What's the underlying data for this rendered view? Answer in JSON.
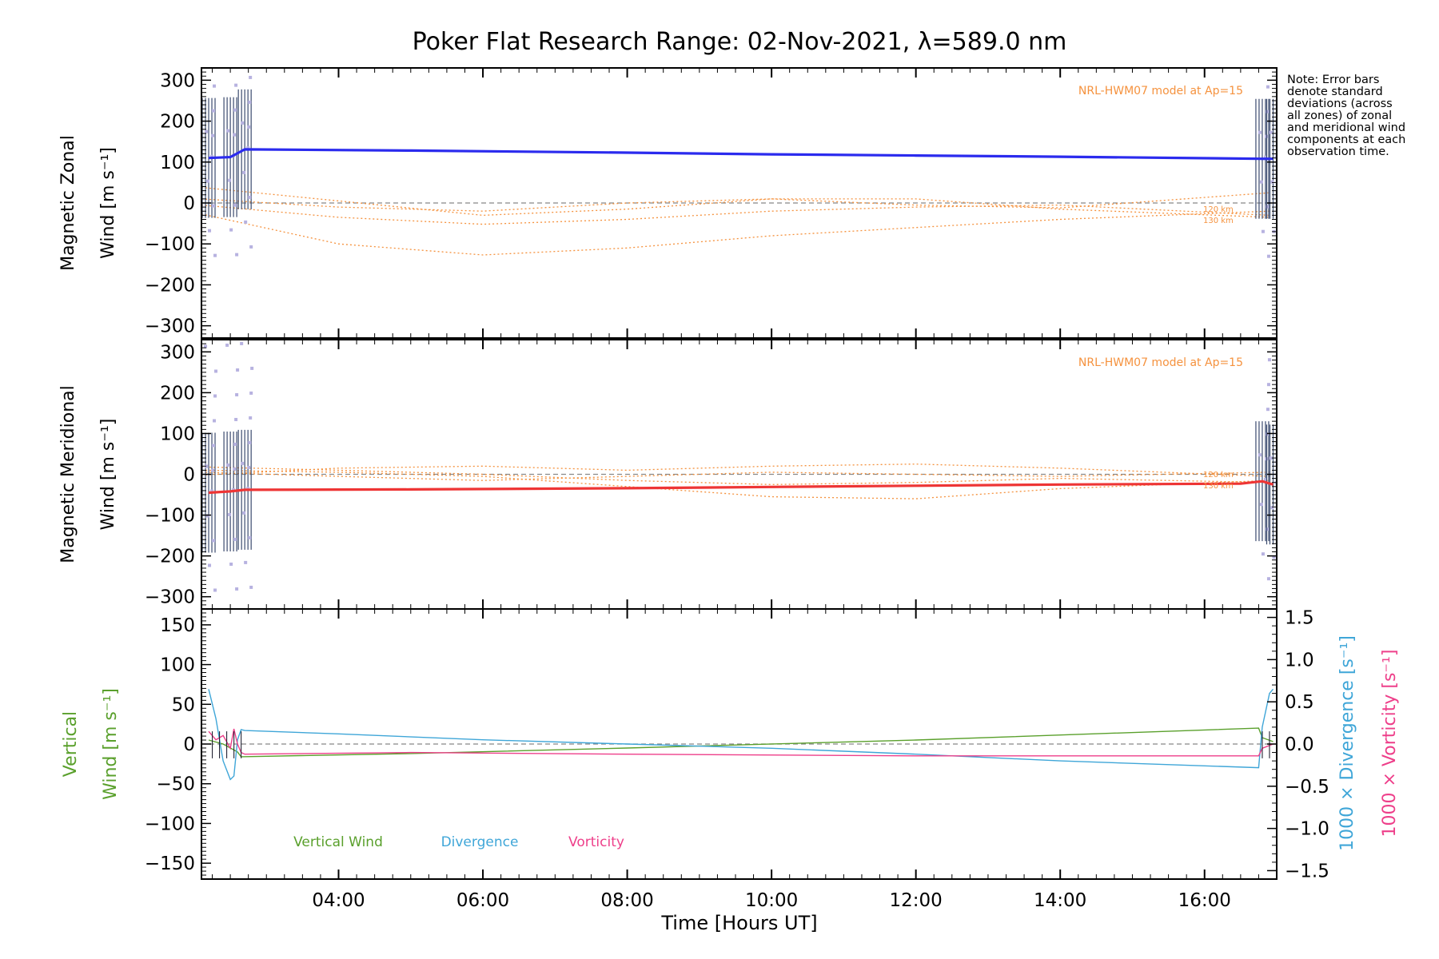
{
  "title": "Poker Flat Research Range: 02-Nov-2021, λ=589.0 nm",
  "note": "Note: Error bars denote standard deviations (across all zones) of zonal and meridional wind components at each observation time.",
  "x_axis": {
    "label": "Time [Hours UT]",
    "range_hours": [
      2.1,
      17.0
    ],
    "ticks": [
      {
        "value": 4,
        "label": "04:00"
      },
      {
        "value": 6,
        "label": "06:00"
      },
      {
        "value": 8,
        "label": "08:00"
      },
      {
        "value": 10,
        "label": "10:00"
      },
      {
        "value": 12,
        "label": "12:00"
      },
      {
        "value": 14,
        "label": "14:00"
      },
      {
        "value": 16,
        "label": "16:00"
      }
    ]
  },
  "colors": {
    "zonal": "#2b2bee",
    "meridional": "#ee3535",
    "model": "#f5923e",
    "vertical": "#5aa02c",
    "divergence": "#3fa6d8",
    "vorticity": "#ee3f8a",
    "scatter": "#b7b2e0",
    "zero_line": "#888888"
  },
  "chart_data": [
    {
      "type": "line",
      "panel": "zonal",
      "ylabel_line1": "Magnetic Zonal",
      "ylabel_line2": "Wind [m s⁻¹]",
      "ylim": [
        -330,
        330
      ],
      "yticks": [
        -300,
        -200,
        -100,
        0,
        100,
        200,
        300
      ],
      "model_label": "NRL-HWM07 model at Ap=15",
      "model_alt_labels": [
        "120 km",
        "130 km"
      ],
      "series": [
        {
          "role": "measured",
          "x": [
            2.2,
            2.5,
            2.7,
            5.0,
            8.0,
            10.0,
            12.0,
            14.0,
            16.8,
            16.95
          ],
          "y": [
            110,
            112,
            131,
            128,
            123,
            119,
            116,
            113,
            108,
            108
          ]
        },
        {
          "role": "model",
          "x": [
            2.1,
            4.0,
            6.0,
            8.0,
            10.0,
            12.0,
            14.0,
            16.9
          ],
          "y": [
            -27,
            -100,
            -127,
            -110,
            -80,
            -60,
            -40,
            -20
          ]
        },
        {
          "role": "model",
          "x": [
            2.1,
            4.0,
            6.0,
            8.0,
            10.0,
            12.0,
            14.0,
            16.9
          ],
          "y": [
            -5,
            -35,
            -52,
            -40,
            -20,
            -10,
            -5,
            -30
          ]
        },
        {
          "role": "model",
          "x": [
            2.1,
            4.0,
            6.0,
            8.0,
            10.0,
            12.0,
            14.0,
            16.9
          ],
          "y": [
            38,
            5,
            -30,
            -15,
            10,
            10,
            -15,
            -35
          ]
        },
        {
          "role": "model",
          "x": [
            2.1,
            4.0,
            6.0,
            8.0,
            10.0,
            12.0,
            14.0,
            16.9
          ],
          "y": [
            10,
            -10,
            -20,
            0,
            10,
            -5,
            -12,
            25
          ]
        }
      ]
    },
    {
      "type": "line",
      "panel": "meridional",
      "ylabel_line1": "Magnetic Meridional",
      "ylabel_line2": "Wind [m s⁻¹]",
      "ylim": [
        -330,
        330
      ],
      "yticks": [
        -300,
        -200,
        -100,
        0,
        100,
        200,
        300
      ],
      "model_label": "NRL-HWM07 model at Ap=15",
      "model_alt_labels": [
        "120 km",
        "130 km"
      ],
      "series": [
        {
          "role": "measured",
          "x": [
            2.2,
            2.5,
            2.7,
            5.0,
            8.0,
            10.0,
            12.0,
            14.0,
            16.5,
            16.8,
            16.95
          ],
          "y": [
            -45,
            -42,
            -38,
            -37,
            -34,
            -31,
            -28,
            -25,
            -23,
            -17,
            -25
          ]
        },
        {
          "role": "model",
          "x": [
            2.1,
            4.0,
            6.0,
            8.0,
            10.0,
            12.0,
            14.0,
            16.9
          ],
          "y": [
            10,
            5,
            -5,
            -30,
            -55,
            -60,
            -35,
            -15
          ]
        },
        {
          "role": "model",
          "x": [
            2.1,
            4.0,
            6.0,
            8.0,
            10.0,
            12.0,
            14.0,
            16.9
          ],
          "y": [
            -2,
            15,
            20,
            10,
            20,
            25,
            15,
            -5
          ]
        },
        {
          "role": "model",
          "x": [
            2.1,
            4.0,
            6.0,
            8.0,
            10.0,
            12.0,
            14.0,
            16.9
          ],
          "y": [
            5,
            -5,
            -15,
            -5,
            5,
            0,
            -5,
            5
          ]
        },
        {
          "role": "model",
          "x": [
            2.1,
            4.0,
            6.0,
            8.0,
            10.0,
            12.0,
            14.0,
            16.9
          ],
          "y": [
            18,
            10,
            0,
            -15,
            -25,
            -20,
            -10,
            -20
          ]
        }
      ]
    },
    {
      "type": "line",
      "panel": "vertical",
      "ylabel_line1": "Vertical",
      "ylabel_line2": "Wind [m s⁻¹]",
      "y2label_div": "1000 × Divergence [s⁻¹]",
      "y2label_vort": "1000 × Vorticity [s⁻¹]",
      "ylim": [
        -170,
        170
      ],
      "yticks": [
        -150,
        -100,
        -50,
        0,
        50,
        100,
        150
      ],
      "y2lim": [
        -1.6,
        1.6
      ],
      "y2ticks": [
        -1.5,
        -1.0,
        -0.5,
        0.0,
        0.5,
        1.0,
        1.5
      ],
      "y2ticklabels": [
        "−1.5",
        "−1.0",
        "−0.5",
        "0.0",
        "0.5",
        "1.0",
        "1.5"
      ],
      "legend": [
        "Vertical Wind",
        "Divergence",
        "Vorticity"
      ],
      "series": [
        {
          "name": "Vertical Wind",
          "axis": "left",
          "x": [
            2.2,
            2.4,
            2.6,
            2.65,
            5.0,
            8.0,
            12.0,
            16.75,
            16.8,
            16.95
          ],
          "y": [
            5,
            0,
            -10,
            -16,
            -12,
            -5,
            5,
            20,
            8,
            3
          ]
        },
        {
          "name": "Divergence",
          "axis": "right",
          "x": [
            2.2,
            2.3,
            2.4,
            2.5,
            2.55,
            2.6,
            2.65,
            2.7,
            4.0,
            6.0,
            8.0,
            10.0,
            12.0,
            14.0,
            16.75,
            16.8,
            16.9,
            16.95
          ],
          "y": [
            0.65,
            0.3,
            -0.2,
            -0.42,
            -0.38,
            0.05,
            0.17,
            0.16,
            0.12,
            0.05,
            0.0,
            -0.05,
            -0.12,
            -0.2,
            -0.28,
            0.2,
            0.6,
            0.65
          ]
        },
        {
          "name": "Vorticity",
          "axis": "right",
          "x": [
            2.2,
            2.3,
            2.4,
            2.5,
            2.55,
            2.6,
            2.65,
            2.7,
            5.0,
            8.0,
            12.0,
            16.75,
            16.8,
            16.95
          ],
          "y": [
            0.15,
            0.05,
            0.1,
            -0.05,
            0.18,
            0.0,
            -0.1,
            -0.12,
            -0.1,
            -0.12,
            -0.14,
            -0.14,
            -0.05,
            0.0
          ]
        }
      ]
    }
  ]
}
